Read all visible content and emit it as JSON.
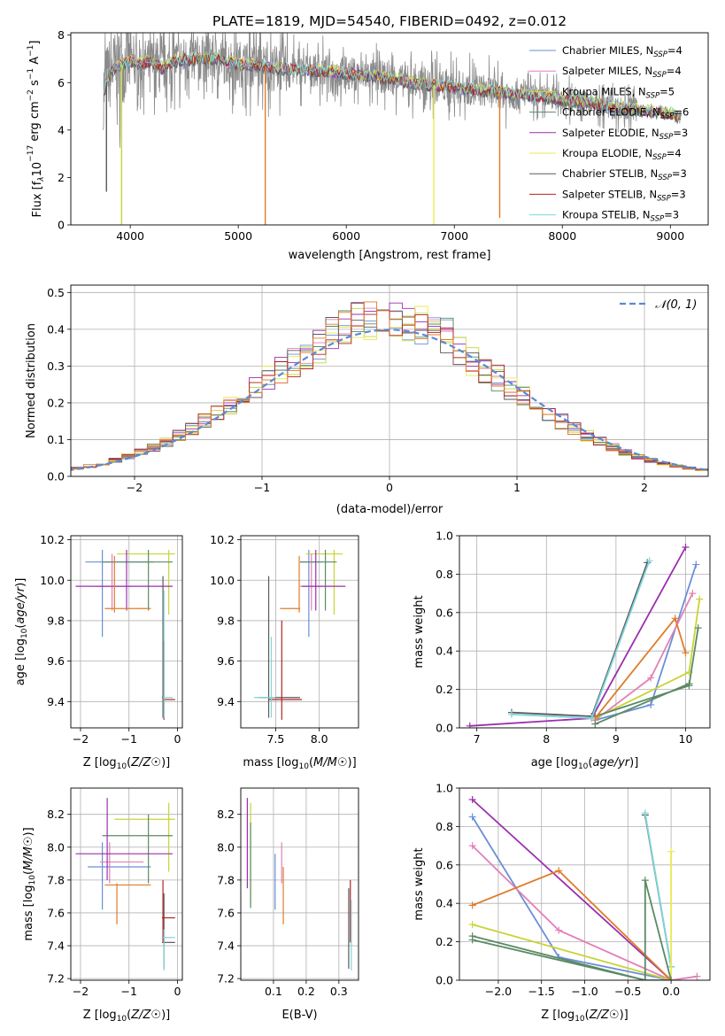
{
  "title": "PLATE=1819, MJD=54540, FIBERID=0492, z=0.012",
  "colors": {
    "Chabrier MILES": "#6a8fd8",
    "Salpeter MILES": "#e37fb8",
    "Kroupa MILES": "#c8d435",
    "Chabrier ELODIE": "#5b8a63",
    "Salpeter ELODIE": "#9b2fae",
    "Kroupa ELODIE": "#e9ea50",
    "Chabrier STELIB": "#5a5a5a",
    "Salpeter STELIB": "#b22222",
    "Kroupa STELIB": "#7fd6db",
    "orange": "#e07b2a",
    "teal": "#6ac0b8"
  },
  "chart_data": [
    {
      "id": "spectrum",
      "type": "line",
      "xlabel": "wavelength [Angstrom, rest frame]",
      "ylabel_parts": [
        "Flux [f",
        "λ",
        "10",
        "−17",
        " erg cm",
        "−2",
        " s",
        "−1",
        " A",
        "−1",
        "]"
      ],
      "xlim": [
        3450,
        9350
      ],
      "ylim": [
        0,
        8.1
      ],
      "xticks": [
        4000,
        5000,
        6000,
        7000,
        8000,
        9000
      ],
      "yticks": [
        0,
        2,
        4,
        6,
        8
      ],
      "legend": [
        {
          "name": "Chabrier MILES",
          "n": "4"
        },
        {
          "name": "Salpeter MILES",
          "n": "4"
        },
        {
          "name": "Kroupa MILES",
          "n": "5"
        },
        {
          "name": "Chabrier ELODIE",
          "n": "6"
        },
        {
          "name": "Salpeter ELODIE",
          "n": "3"
        },
        {
          "name": "Kroupa ELODIE",
          "n": "4"
        },
        {
          "name": "Chabrier STELIB",
          "n": "3"
        },
        {
          "name": "Salpeter STELIB",
          "n": "3"
        },
        {
          "name": "Kroupa STELIB",
          "n": "3"
        }
      ],
      "legend_sub": "SSP",
      "legend_placement": "top-right",
      "continuum": [
        [
          3750,
          5.6
        ],
        [
          3800,
          6.3
        ],
        [
          3850,
          6.6
        ],
        [
          3900,
          6.7
        ],
        [
          4000,
          6.9
        ],
        [
          4100,
          6.8
        ],
        [
          4200,
          6.9
        ],
        [
          4300,
          6.6
        ],
        [
          4400,
          6.9
        ],
        [
          4600,
          7.0
        ],
        [
          4800,
          7.0
        ],
        [
          5000,
          6.8
        ],
        [
          5200,
          6.7
        ],
        [
          5400,
          6.6
        ],
        [
          5600,
          6.5
        ],
        [
          5800,
          6.5
        ],
        [
          6000,
          6.4
        ],
        [
          6200,
          6.3
        ],
        [
          6400,
          6.2
        ],
        [
          6600,
          6.0
        ],
        [
          6800,
          5.9
        ],
        [
          7000,
          5.8
        ],
        [
          7200,
          5.7
        ],
        [
          7400,
          5.6
        ],
        [
          7600,
          5.5
        ],
        [
          7800,
          5.4
        ],
        [
          8000,
          5.3
        ],
        [
          8200,
          5.2
        ],
        [
          8400,
          5.0
        ],
        [
          8600,
          4.9
        ],
        [
          8800,
          4.8
        ],
        [
          9000,
          4.7
        ],
        [
          9100,
          4.5
        ]
      ],
      "data_dips": [
        [
          5250,
          0.0,
          "#e07b2a"
        ],
        [
          6810,
          0.0,
          "#e9ea50"
        ],
        [
          7420,
          0.3,
          "#e07b2a"
        ],
        [
          3780,
          1.4,
          "#5a5a5a"
        ],
        [
          3920,
          0.0,
          "#c8d435"
        ]
      ]
    },
    {
      "id": "residual",
      "type": "histogram",
      "xlabel": "(data-model)/error",
      "ylabel": "Normed distribution",
      "xlim": [
        -2.5,
        2.5
      ],
      "ylim": [
        0,
        0.52
      ],
      "xticks": [
        -2,
        -1,
        0,
        1,
        2
      ],
      "yticks": [
        0.0,
        0.1,
        0.2,
        0.3,
        0.4,
        0.5
      ],
      "bin_width": 0.1,
      "gaussian_label": "𝒩(0, 1)",
      "legend_placement": "top-right"
    },
    {
      "id": "age_vs_Z",
      "type": "errorbar",
      "xlabel": "Z [log10(Z/Z⊙)]",
      "ylabel": "age  [log10(age/yr)]",
      "xlim": [
        -2.2,
        0.1
      ],
      "ylim": [
        9.27,
        10.22
      ],
      "xticks": [
        -2,
        -1,
        0
      ],
      "yticks": [
        9.4,
        9.6,
        9.8,
        10.0,
        10.2
      ],
      "points": [
        {
          "s": "Chabrier MILES",
          "x": -1.55,
          "xlo": -1.9,
          "xhi": -0.5,
          "y": 10.09,
          "ylo": 9.72,
          "yhi": 10.15
        },
        {
          "s": "Salpeter MILES",
          "x": -1.35,
          "xlo": -1.7,
          "xhi": -0.95,
          "y": 9.97,
          "ylo": 9.85,
          "yhi": 10.13
        },
        {
          "s": "Kroupa MILES",
          "x": -0.18,
          "xlo": -1.25,
          "xhi": -0.05,
          "y": 10.13,
          "ylo": 9.83,
          "yhi": 10.15
        },
        {
          "s": "Chabrier ELODIE",
          "x": -0.6,
          "xlo": -1.55,
          "xhi": -0.1,
          "y": 10.09,
          "ylo": 9.85,
          "yhi": 10.15
        },
        {
          "s": "Salpeter ELODIE",
          "x": -1.05,
          "xlo": -2.1,
          "xhi": -0.1,
          "y": 9.97,
          "ylo": 9.85,
          "yhi": 10.15
        },
        {
          "s": "orange",
          "x": -1.3,
          "xlo": -1.5,
          "xhi": -0.55,
          "y": 9.86,
          "ylo": 9.84,
          "yhi": 10.12
        },
        {
          "s": "Chabrier STELIB",
          "x": -0.3,
          "xlo": -0.32,
          "xhi": -0.28,
          "y": 9.42,
          "ylo": 9.32,
          "yhi": 10.02
        },
        {
          "s": "Salpeter STELIB",
          "x": -0.28,
          "xlo": -0.3,
          "xhi": -0.05,
          "y": 9.41,
          "ylo": 9.31,
          "yhi": 9.7
        },
        {
          "s": "Kroupa STELIB",
          "x": -0.28,
          "xlo": -0.3,
          "xhi": -0.1,
          "y": 9.42,
          "ylo": 9.32,
          "yhi": 9.95
        }
      ]
    },
    {
      "id": "age_vs_mass",
      "type": "errorbar",
      "xlabel": "mass [log10(M/M⊙)]",
      "ylabel": "",
      "xlim": [
        7.1,
        8.45
      ],
      "ylim": [
        9.27,
        10.22
      ],
      "xticks": [
        7.5,
        8.0
      ],
      "yticks": [
        9.4,
        9.6,
        9.8,
        10.0,
        10.2
      ],
      "points": [
        {
          "s": "Chabrier MILES",
          "x": 7.88,
          "xlo": 7.78,
          "xhi": 8.03,
          "y": 10.09,
          "ylo": 9.72,
          "yhi": 10.15
        },
        {
          "s": "Salpeter MILES",
          "x": 7.91,
          "xlo": 7.78,
          "xhi": 8.03,
          "y": 9.97,
          "ylo": 9.85,
          "yhi": 10.13
        },
        {
          "s": "Kroupa MILES",
          "x": 8.17,
          "xlo": 7.85,
          "xhi": 8.27,
          "y": 10.13,
          "ylo": 9.83,
          "yhi": 10.15
        },
        {
          "s": "Chabrier ELODIE",
          "x": 8.07,
          "xlo": 7.78,
          "xhi": 8.2,
          "y": 10.09,
          "ylo": 9.85,
          "yhi": 10.15
        },
        {
          "s": "Salpeter ELODIE",
          "x": 7.96,
          "xlo": 7.8,
          "xhi": 8.3,
          "y": 9.97,
          "ylo": 9.85,
          "yhi": 10.15
        },
        {
          "s": "orange",
          "x": 7.77,
          "xlo": 7.55,
          "xhi": 7.78,
          "y": 9.86,
          "ylo": 9.84,
          "yhi": 10.12
        },
        {
          "s": "Chabrier STELIB",
          "x": 7.42,
          "xlo": 7.3,
          "xhi": 7.78,
          "y": 9.42,
          "ylo": 9.32,
          "yhi": 10.02
        },
        {
          "s": "Salpeter STELIB",
          "x": 7.57,
          "xlo": 7.42,
          "xhi": 7.8,
          "y": 9.41,
          "ylo": 9.31,
          "yhi": 9.8
        },
        {
          "s": "Kroupa STELIB",
          "x": 7.45,
          "xlo": 7.25,
          "xhi": 7.5,
          "y": 9.42,
          "ylo": 9.32,
          "yhi": 9.72
        }
      ]
    },
    {
      "id": "weight_vs_age",
      "type": "line",
      "xlabel": "age  [log10(age/yr)]",
      "ylabel": "mass weight",
      "xlim": [
        6.75,
        10.35
      ],
      "ylim": [
        0,
        1
      ],
      "xticks": [
        7,
        8,
        9,
        10
      ],
      "yticks": [
        0.0,
        0.2,
        0.4,
        0.6,
        0.8,
        1.0
      ],
      "series": [
        {
          "s": "Chabrier MILES",
          "x": [
            8.7,
            9.5,
            10.15
          ],
          "y": [
            0.04,
            0.12,
            0.85
          ]
        },
        {
          "s": "Salpeter MILES",
          "x": [
            8.7,
            9.5,
            10.1
          ],
          "y": [
            0.04,
            0.26,
            0.7
          ]
        },
        {
          "s": "Kroupa MILES",
          "x": [
            8.7,
            10.05,
            10.2
          ],
          "y": [
            0.05,
            0.29,
            0.67
          ]
        },
        {
          "s": "Chabrier ELODIE",
          "x": [
            8.7,
            10.05,
            10.18
          ],
          "y": [
            0.06,
            0.22,
            0.52
          ]
        },
        {
          "s": "Salpeter ELODIE",
          "x": [
            6.9,
            8.65,
            10.0
          ],
          "y": [
            0.01,
            0.05,
            0.94
          ]
        },
        {
          "s": "orange",
          "x": [
            8.7,
            9.85,
            10.0
          ],
          "y": [
            0.05,
            0.57,
            0.39
          ]
        },
        {
          "s": "Chabrier STELIB",
          "x": [
            7.5,
            8.65,
            9.45
          ],
          "y": [
            0.08,
            0.06,
            0.86
          ]
        },
        {
          "s": "Kroupa STELIB",
          "x": [
            7.5,
            8.65,
            9.48
          ],
          "y": [
            0.07,
            0.05,
            0.87
          ]
        },
        {
          "s": "Chabrier ELODIE",
          "x": [
            8.7,
            10.05
          ],
          "y": [
            0.02,
            0.23
          ]
        }
      ]
    },
    {
      "id": "mass_vs_Z",
      "type": "errorbar",
      "xlabel": "Z [log10(Z/Z⊙)]",
      "ylabel": "mass [log10(M/M⊙)]",
      "xlim": [
        -2.2,
        0.1
      ],
      "ylim": [
        7.19,
        8.36
      ],
      "xticks": [
        -2,
        -1,
        0
      ],
      "yticks": [
        7.2,
        7.4,
        7.6,
        7.8,
        8.0,
        8.2
      ],
      "points": [
        {
          "s": "Chabrier MILES",
          "x": -1.55,
          "xlo": -1.85,
          "xhi": -0.55,
          "y": 7.88,
          "ylo": 7.62,
          "yhi": 8.03
        },
        {
          "s": "Salpeter MILES",
          "x": -1.4,
          "xlo": -1.6,
          "xhi": -0.7,
          "y": 7.91,
          "ylo": 7.78,
          "yhi": 8.03
        },
        {
          "s": "Kroupa MILES",
          "x": -0.18,
          "xlo": -1.3,
          "xhi": -0.05,
          "y": 8.17,
          "ylo": 7.85,
          "yhi": 8.27
        },
        {
          "s": "Chabrier ELODIE",
          "x": -0.6,
          "xlo": -1.55,
          "xhi": -0.1,
          "y": 8.07,
          "ylo": 7.78,
          "yhi": 8.2
        },
        {
          "s": "Salpeter ELODIE",
          "x": -1.45,
          "xlo": -2.1,
          "xhi": -0.1,
          "y": 7.96,
          "ylo": 7.8,
          "yhi": 8.3
        },
        {
          "s": "orange",
          "x": -1.25,
          "xlo": -1.5,
          "xhi": -0.55,
          "y": 7.77,
          "ylo": 7.53,
          "yhi": 7.78
        },
        {
          "s": "Chabrier STELIB",
          "x": -0.28,
          "xlo": -0.32,
          "xhi": -0.05,
          "y": 7.42,
          "ylo": 7.26,
          "yhi": 7.72
        },
        {
          "s": "Salpeter STELIB",
          "x": -0.3,
          "xlo": -0.32,
          "xhi": -0.05,
          "y": 7.57,
          "ylo": 7.42,
          "yhi": 7.8
        },
        {
          "s": "Kroupa STELIB",
          "x": -0.28,
          "xlo": -0.3,
          "xhi": -0.05,
          "y": 7.45,
          "ylo": 7.25,
          "yhi": 7.5
        }
      ]
    },
    {
      "id": "mass_vs_ebv",
      "type": "errorbar",
      "xlabel": "E(B-V)",
      "ylabel": "",
      "xlim": [
        0.0,
        0.36
      ],
      "ylim": [
        7.19,
        8.36
      ],
      "xticks": [
        0.1,
        0.2,
        0.3
      ],
      "yticks": [
        7.2,
        7.4,
        7.6,
        7.8,
        8.0,
        8.2
      ],
      "points": [
        {
          "s": "Salpeter ELODIE",
          "x": 0.02,
          "y": 8.05,
          "ylo": 7.75,
          "yhi": 8.3
        },
        {
          "s": "Kroupa MILES",
          "x": 0.03,
          "y": 7.95,
          "ylo": 7.65,
          "yhi": 8.27
        },
        {
          "s": "Chabrier ELODIE",
          "x": 0.03,
          "y": 7.9,
          "ylo": 7.63,
          "yhi": 8.15
        },
        {
          "s": "Chabrier MILES",
          "x": 0.105,
          "y": 7.78,
          "ylo": 7.62,
          "yhi": 7.96
        },
        {
          "s": "Salpeter MILES",
          "x": 0.125,
          "y": 7.9,
          "ylo": 7.78,
          "yhi": 8.03
        },
        {
          "s": "orange",
          "x": 0.13,
          "y": 7.7,
          "ylo": 7.53,
          "yhi": 7.88
        },
        {
          "s": "Chabrier STELIB",
          "x": 0.33,
          "y": 7.5,
          "ylo": 7.26,
          "yhi": 7.75
        },
        {
          "s": "Salpeter STELIB",
          "x": 0.335,
          "y": 7.6,
          "ylo": 7.42,
          "yhi": 7.8
        },
        {
          "s": "Kroupa STELIB",
          "x": 0.338,
          "y": 7.45,
          "ylo": 7.25,
          "yhi": 7.68
        }
      ]
    },
    {
      "id": "weight_vs_Z",
      "type": "line",
      "xlabel": "Z [log10(Z/Z⊙)]",
      "ylabel": "mass weight",
      "xlim": [
        -2.45,
        0.45
      ],
      "ylim": [
        0,
        1
      ],
      "xticks": [
        -2.0,
        -1.5,
        -1.0,
        -0.5,
        0.0
      ],
      "yticks": [
        0.0,
        0.2,
        0.4,
        0.6,
        0.8,
        1.0
      ],
      "series": [
        {
          "s": "Chabrier MILES",
          "x": [
            -2.3,
            -1.3,
            0.0
          ],
          "y": [
            0.85,
            0.12,
            0.0
          ]
        },
        {
          "s": "Salpeter MILES",
          "x": [
            -2.3,
            -1.3,
            0.0,
            0.3
          ],
          "y": [
            0.7,
            0.26,
            0.0,
            0.02
          ]
        },
        {
          "s": "Kroupa MILES",
          "x": [
            -2.3,
            0.0
          ],
          "y": [
            0.29,
            0.0
          ]
        },
        {
          "s": "Chabrier ELODIE",
          "x": [
            -2.3,
            -0.3,
            0.0
          ],
          "y": [
            0.23,
            0.0,
            0.0
          ]
        },
        {
          "s": "Salpeter ELODIE",
          "x": [
            -2.3,
            0.0
          ],
          "y": [
            0.94,
            0.0
          ]
        },
        {
          "s": "orange",
          "x": [
            -2.3,
            -1.3,
            0.0
          ],
          "y": [
            0.39,
            0.57,
            0.0
          ]
        },
        {
          "s": "Chabrier STELIB",
          "x": [
            -0.3,
            0.0
          ],
          "y": [
            0.86,
            0.07
          ]
        },
        {
          "s": "Kroupa STELIB",
          "x": [
            -0.3,
            0.0
          ],
          "y": [
            0.87,
            0.07
          ]
        },
        {
          "s": "Kroupa ELODIE",
          "x": [
            0.0,
            0.0
          ],
          "y": [
            0.0,
            0.67
          ]
        },
        {
          "s": "Chabrier ELODIE",
          "x": [
            -2.3,
            -0.3,
            -0.3,
            0.0
          ],
          "y": [
            0.21,
            0.0,
            0.52,
            0.0
          ]
        }
      ]
    }
  ]
}
